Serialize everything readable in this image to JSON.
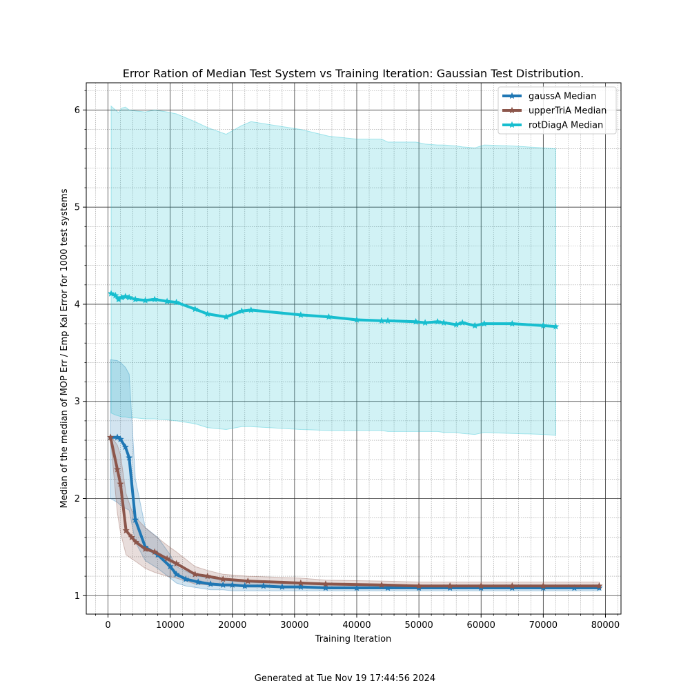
{
  "chart_data": {
    "type": "line",
    "title": "Error Ration of Median Test System vs Training Iteration: Gaussian Test Distribution.",
    "xlabel": "Training Iteration",
    "ylabel": "Median of the median of MOP Err / Emp Kal Error for 1000 test systems",
    "xlim": [
      -3500,
      82500
    ],
    "ylim": [
      0.81,
      6.28
    ],
    "x_ticks": [
      0,
      10000,
      20000,
      30000,
      40000,
      50000,
      60000,
      70000,
      80000
    ],
    "x_tick_labels": [
      "0",
      "10000",
      "20000",
      "30000",
      "40000",
      "50000",
      "60000",
      "70000",
      "80000"
    ],
    "y_ticks": [
      1,
      2,
      3,
      4,
      5,
      6
    ],
    "y_tick_labels": [
      "1",
      "2",
      "3",
      "4",
      "5",
      "6"
    ],
    "grid": true,
    "legend_position": "top-right",
    "series": [
      {
        "name": "gaussA Median",
        "color": "#1f77b4",
        "x": [
          400,
          1500,
          2000,
          2800,
          3400,
          4400,
          6000,
          8000,
          10000,
          11000,
          12500,
          14500,
          16500,
          18500,
          20000,
          22000,
          25000,
          28000,
          31000,
          35000,
          40000,
          45000,
          50000,
          55000,
          60000,
          65000,
          70000,
          75000,
          79000
        ],
        "y": [
          2.63,
          2.63,
          2.61,
          2.53,
          2.42,
          1.78,
          1.5,
          1.42,
          1.3,
          1.22,
          1.17,
          1.14,
          1.12,
          1.11,
          1.11,
          1.1,
          1.1,
          1.09,
          1.09,
          1.08,
          1.08,
          1.08,
          1.08,
          1.08,
          1.08,
          1.08,
          1.08,
          1.08,
          1.08
        ],
        "lower": [
          2.0,
          1.96,
          1.93,
          1.9,
          1.88,
          1.55,
          1.36,
          1.28,
          1.18,
          1.13,
          1.1,
          1.08,
          1.06,
          1.06,
          1.05,
          1.05,
          1.05,
          1.05,
          1.05,
          1.05,
          1.05,
          1.05,
          1.05,
          1.05,
          1.05,
          1.05,
          1.05,
          1.05,
          1.05
        ],
        "upper": [
          3.43,
          3.42,
          3.4,
          3.35,
          3.28,
          2.2,
          1.7,
          1.6,
          1.42,
          1.3,
          1.25,
          1.2,
          1.18,
          1.16,
          1.15,
          1.14,
          1.13,
          1.13,
          1.12,
          1.12,
          1.12,
          1.11,
          1.11,
          1.11,
          1.11,
          1.11,
          1.11,
          1.11,
          1.11
        ]
      },
      {
        "name": "upperTriA Median",
        "color": "#8c564b",
        "x": [
          400,
          1500,
          2000,
          2900,
          3800,
          4500,
          6000,
          7500,
          9500,
          11000,
          14000,
          16000,
          18500,
          22500,
          31000,
          35000,
          44000,
          50000,
          55000,
          60000,
          65000,
          70000,
          79000
        ],
        "y": [
          2.63,
          2.3,
          2.15,
          1.67,
          1.6,
          1.55,
          1.48,
          1.45,
          1.38,
          1.33,
          1.22,
          1.2,
          1.17,
          1.15,
          1.13,
          1.12,
          1.11,
          1.1,
          1.1,
          1.1,
          1.1,
          1.1,
          1.1
        ],
        "lower": [
          2.62,
          1.85,
          1.65,
          1.42,
          1.38,
          1.35,
          1.28,
          1.24,
          1.2,
          1.18,
          1.12,
          1.11,
          1.1,
          1.09,
          1.08,
          1.08,
          1.08,
          1.08,
          1.08,
          1.08,
          1.08,
          1.08,
          1.08
        ],
        "upper": [
          2.65,
          2.55,
          2.45,
          2.05,
          1.88,
          1.8,
          1.7,
          1.62,
          1.52,
          1.45,
          1.3,
          1.26,
          1.22,
          1.2,
          1.18,
          1.16,
          1.15,
          1.14,
          1.14,
          1.14,
          1.14,
          1.14,
          1.14
        ]
      },
      {
        "name": "rotDiagA Median",
        "color": "#17becf",
        "x": [
          500,
          1200,
          1700,
          2200,
          2800,
          3400,
          4400,
          6000,
          7500,
          9500,
          11000,
          14000,
          16000,
          19000,
          21500,
          23000,
          31000,
          35500,
          40000,
          44000,
          45000,
          49500,
          51000,
          53000,
          54000,
          56000,
          57000,
          59000,
          60500,
          65000,
          70000,
          72000
        ],
        "y": [
          4.11,
          4.09,
          4.05,
          4.07,
          4.08,
          4.07,
          4.05,
          4.04,
          4.05,
          4.03,
          4.02,
          3.95,
          3.9,
          3.87,
          3.93,
          3.94,
          3.89,
          3.87,
          3.84,
          3.83,
          3.83,
          3.82,
          3.81,
          3.82,
          3.81,
          3.79,
          3.81,
          3.78,
          3.8,
          3.8,
          3.78,
          3.77
        ],
        "lower": [
          2.88,
          2.86,
          2.85,
          2.84,
          2.84,
          2.83,
          2.83,
          2.82,
          2.82,
          2.81,
          2.8,
          2.77,
          2.73,
          2.71,
          2.74,
          2.74,
          2.71,
          2.7,
          2.7,
          2.7,
          2.69,
          2.69,
          2.69,
          2.69,
          2.68,
          2.68,
          2.67,
          2.66,
          2.68,
          2.67,
          2.66,
          2.65
        ],
        "upper": [
          6.04,
          6.0,
          5.97,
          6.02,
          6.03,
          6.0,
          5.99,
          5.98,
          6.0,
          5.98,
          5.96,
          5.88,
          5.82,
          5.75,
          5.84,
          5.88,
          5.8,
          5.73,
          5.7,
          5.7,
          5.67,
          5.67,
          5.65,
          5.64,
          5.64,
          5.63,
          5.62,
          5.61,
          5.64,
          5.63,
          5.61,
          5.6
        ]
      }
    ]
  },
  "footer": {
    "text": "Generated at Tue Nov 19 17:44:56 2024"
  }
}
